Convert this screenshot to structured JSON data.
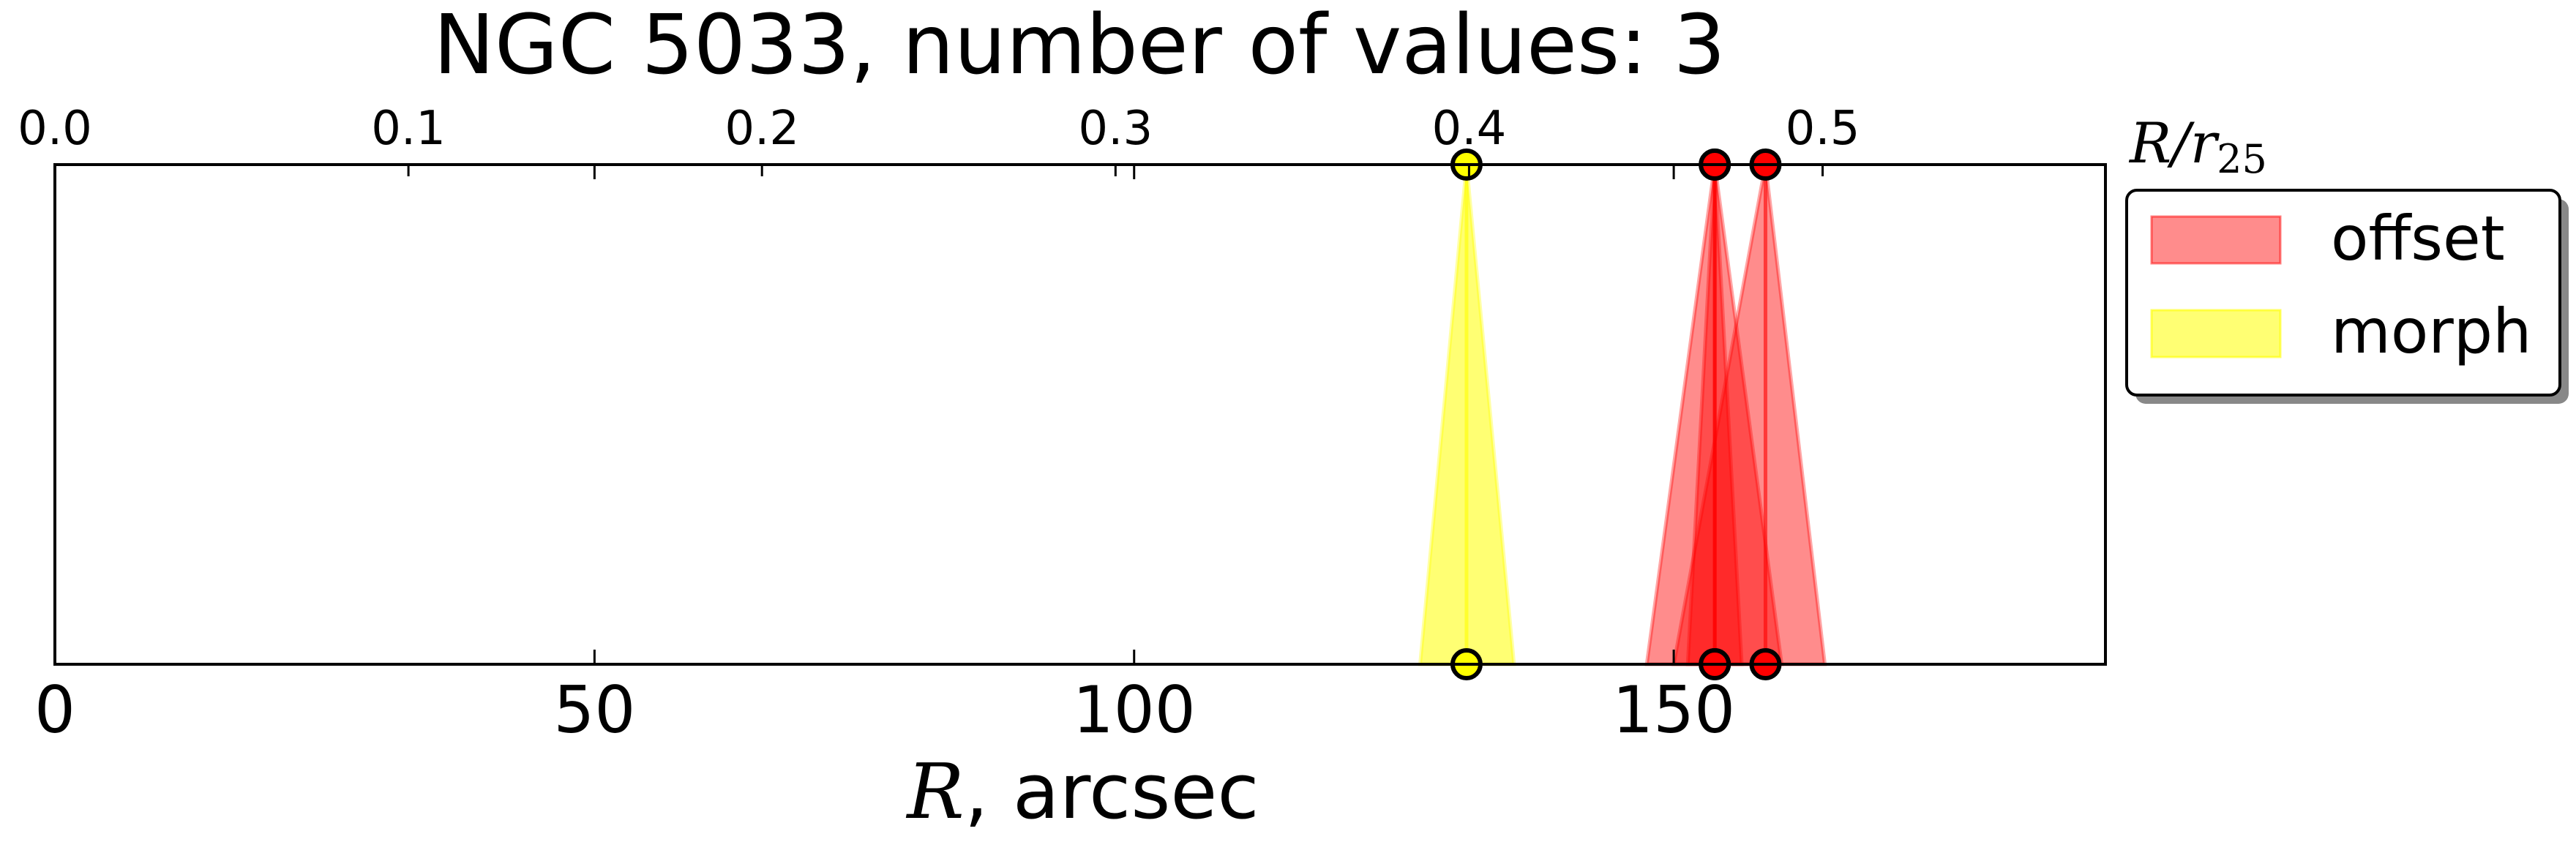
{
  "chart_data": {
    "type": "area",
    "title": "NGC 5033, number of values: 3",
    "xlabel_symbol": "R",
    "xlabel_unit": ", arcsec",
    "top_axis_label": "R/r",
    "top_axis_label_sub": "25",
    "xlim": [
      0,
      190
    ],
    "x_ticks": [
      0,
      50,
      100,
      150
    ],
    "top_xlim": [
      0.0,
      0.58
    ],
    "top_ticks": [
      "0.0",
      "0.1",
      "0.2",
      "0.3",
      "0.4",
      "0.5"
    ],
    "top_tick_values": [
      0.0,
      0.1,
      0.2,
      0.3,
      0.4,
      0.5
    ],
    "grid": false,
    "legend_placement": "outside-right-top",
    "series": [
      {
        "name": "offset",
        "color": "#ff0000",
        "opacity": 0.45,
        "values": [
          {
            "center": 153.8,
            "low": 151.3,
            "high": 156.3
          },
          {
            "center": 158.5,
            "low": 150.0,
            "high": 164.0
          },
          {
            "center": 153.8,
            "low": 147.5,
            "high": 160.0
          }
        ]
      },
      {
        "name": "morph",
        "color": "#ffff00",
        "opacity": 0.55,
        "values": [
          {
            "center": 130.8,
            "low": 126.5,
            "high": 135.2
          }
        ]
      }
    ]
  }
}
